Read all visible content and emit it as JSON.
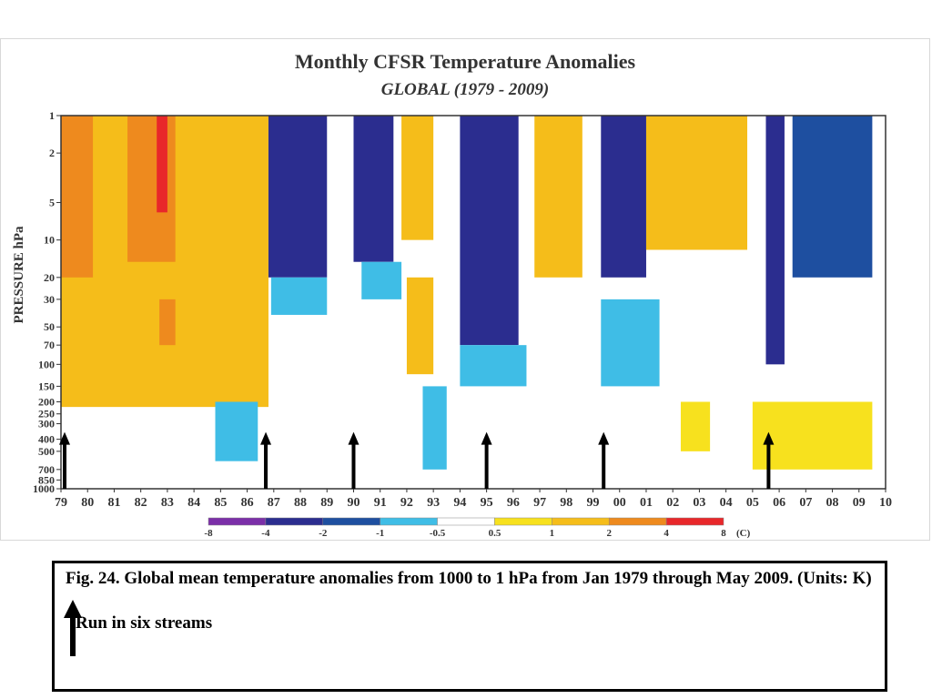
{
  "chart_data": {
    "type": "heatmap",
    "title": "Monthly CFSR Temperature Anomalies",
    "subtitle": "GLOBAL   (1979 - 2009)",
    "ylabel": "PRESSURE hPa",
    "xlabel": "",
    "y_scale": "log",
    "y_reversed": true,
    "ylim": [
      1000,
      1
    ],
    "xlim": [
      1979,
      2010
    ],
    "x_tick_labels": [
      "79",
      "80",
      "81",
      "82",
      "83",
      "84",
      "85",
      "86",
      "87",
      "88",
      "89",
      "90",
      "91",
      "92",
      "93",
      "94",
      "95",
      "96",
      "97",
      "98",
      "99",
      "00",
      "01",
      "02",
      "03",
      "04",
      "05",
      "06",
      "07",
      "08",
      "09",
      "10"
    ],
    "y_tick_labels": [
      "1",
      "2",
      "5",
      "10",
      "20",
      "30",
      "50",
      "70",
      "100",
      "150",
      "200",
      "250",
      "300",
      "400",
      "500",
      "700",
      "850",
      "1000"
    ],
    "y_tick_values": [
      1,
      2,
      5,
      10,
      20,
      30,
      50,
      70,
      100,
      150,
      200,
      250,
      300,
      400,
      500,
      700,
      850,
      1000
    ],
    "colorbar": {
      "unit": "(C)",
      "tick_labels": [
        "-8",
        "-4",
        "-2",
        "-1",
        "-0.5",
        "0.5",
        "1",
        "2",
        "4",
        "8"
      ],
      "bins": [
        {
          "from": -8,
          "to": -4,
          "color": "#7b2fa8"
        },
        {
          "from": -4,
          "to": -2,
          "color": "#2b2d8f"
        },
        {
          "from": -2,
          "to": -1,
          "color": "#1e4fa0"
        },
        {
          "from": -1,
          "to": -0.5,
          "color": "#3fbde6"
        },
        {
          "from": -0.5,
          "to": 0.5,
          "color": "#ffffff"
        },
        {
          "from": 0.5,
          "to": 1,
          "color": "#f7e11e"
        },
        {
          "from": 1,
          "to": 2,
          "color": "#f5bd1a"
        },
        {
          "from": 2,
          "to": 4,
          "color": "#ee8a1e"
        },
        {
          "from": 4,
          "to": 8,
          "color": "#e8272a"
        }
      ]
    },
    "regions": [
      {
        "x0": 1979.0,
        "x1": 1986.8,
        "p_top": 1,
        "p_bot": 220,
        "anomaly": 1.5
      },
      {
        "x0": 1979.0,
        "x1": 1980.2,
        "p_top": 1,
        "p_bot": 20,
        "anomaly": 3.0
      },
      {
        "x0": 1981.5,
        "x1": 1983.3,
        "p_top": 1,
        "p_bot": 15,
        "anomaly": 2.5
      },
      {
        "x0": 1982.6,
        "x1": 1983.0,
        "p_top": 1,
        "p_bot": 6,
        "anomaly": 4.5
      },
      {
        "x0": 1982.7,
        "x1": 1983.3,
        "p_top": 30,
        "p_bot": 70,
        "anomaly": 3.0
      },
      {
        "x0": 1986.8,
        "x1": 1989.0,
        "p_top": 1,
        "p_bot": 20,
        "anomaly": -2.5
      },
      {
        "x0": 1986.9,
        "x1": 1989.0,
        "p_top": 20,
        "p_bot": 40,
        "anomaly": -0.8
      },
      {
        "x0": 1990.0,
        "x1": 1991.5,
        "p_top": 1,
        "p_bot": 15,
        "anomaly": -2.5
      },
      {
        "x0": 1990.3,
        "x1": 1991.8,
        "p_top": 15,
        "p_bot": 30,
        "anomaly": -0.8
      },
      {
        "x0": 1991.8,
        "x1": 1993.0,
        "p_top": 1,
        "p_bot": 10,
        "anomaly": 1.5
      },
      {
        "x0": 1992.0,
        "x1": 1993.0,
        "p_top": 20,
        "p_bot": 120,
        "anomaly": 1.5
      },
      {
        "x0": 1992.6,
        "x1": 1993.5,
        "p_top": 150,
        "p_bot": 700,
        "anomaly": -0.8
      },
      {
        "x0": 1994.0,
        "x1": 1996.2,
        "p_top": 1,
        "p_bot": 70,
        "anomaly": -2.5
      },
      {
        "x0": 1994.0,
        "x1": 1996.5,
        "p_top": 70,
        "p_bot": 150,
        "anomaly": -0.8
      },
      {
        "x0": 1996.8,
        "x1": 1998.6,
        "p_top": 1,
        "p_bot": 20,
        "anomaly": 1.5
      },
      {
        "x0": 1999.3,
        "x1": 2001.0,
        "p_top": 1,
        "p_bot": 20,
        "anomaly": -2.5
      },
      {
        "x0": 1999.3,
        "x1": 2001.5,
        "p_top": 30,
        "p_bot": 150,
        "anomaly": -0.8
      },
      {
        "x0": 2001.0,
        "x1": 2004.8,
        "p_top": 1,
        "p_bot": 12,
        "anomaly": 1.5
      },
      {
        "x0": 2005.5,
        "x1": 2006.2,
        "p_top": 1,
        "p_bot": 100,
        "anomaly": -2.5
      },
      {
        "x0": 2006.5,
        "x1": 2009.5,
        "p_top": 1,
        "p_bot": 20,
        "anomaly": -2.0
      },
      {
        "x0": 2002.3,
        "x1": 2003.4,
        "p_top": 200,
        "p_bot": 500,
        "anomaly": 0.8
      },
      {
        "x0": 2005.0,
        "x1": 2009.5,
        "p_top": 200,
        "p_bot": 700,
        "anomaly": 0.8
      },
      {
        "x0": 1984.8,
        "x1": 1986.4,
        "p_top": 200,
        "p_bot": 600,
        "anomaly": -0.8
      }
    ],
    "stream_start_markers": [
      1979.0,
      1986.7,
      1990.0,
      1995.0,
      1999.4,
      2005.6
    ]
  },
  "caption": {
    "text": "Fig. 24. Global mean temperature anomalies from 1000 to 1 hPa from Jan 1979 through May 2009. (Units: K)",
    "note": "Run in six streams"
  },
  "colors": {
    "axis": "#333333",
    "arrow": "#000000"
  }
}
